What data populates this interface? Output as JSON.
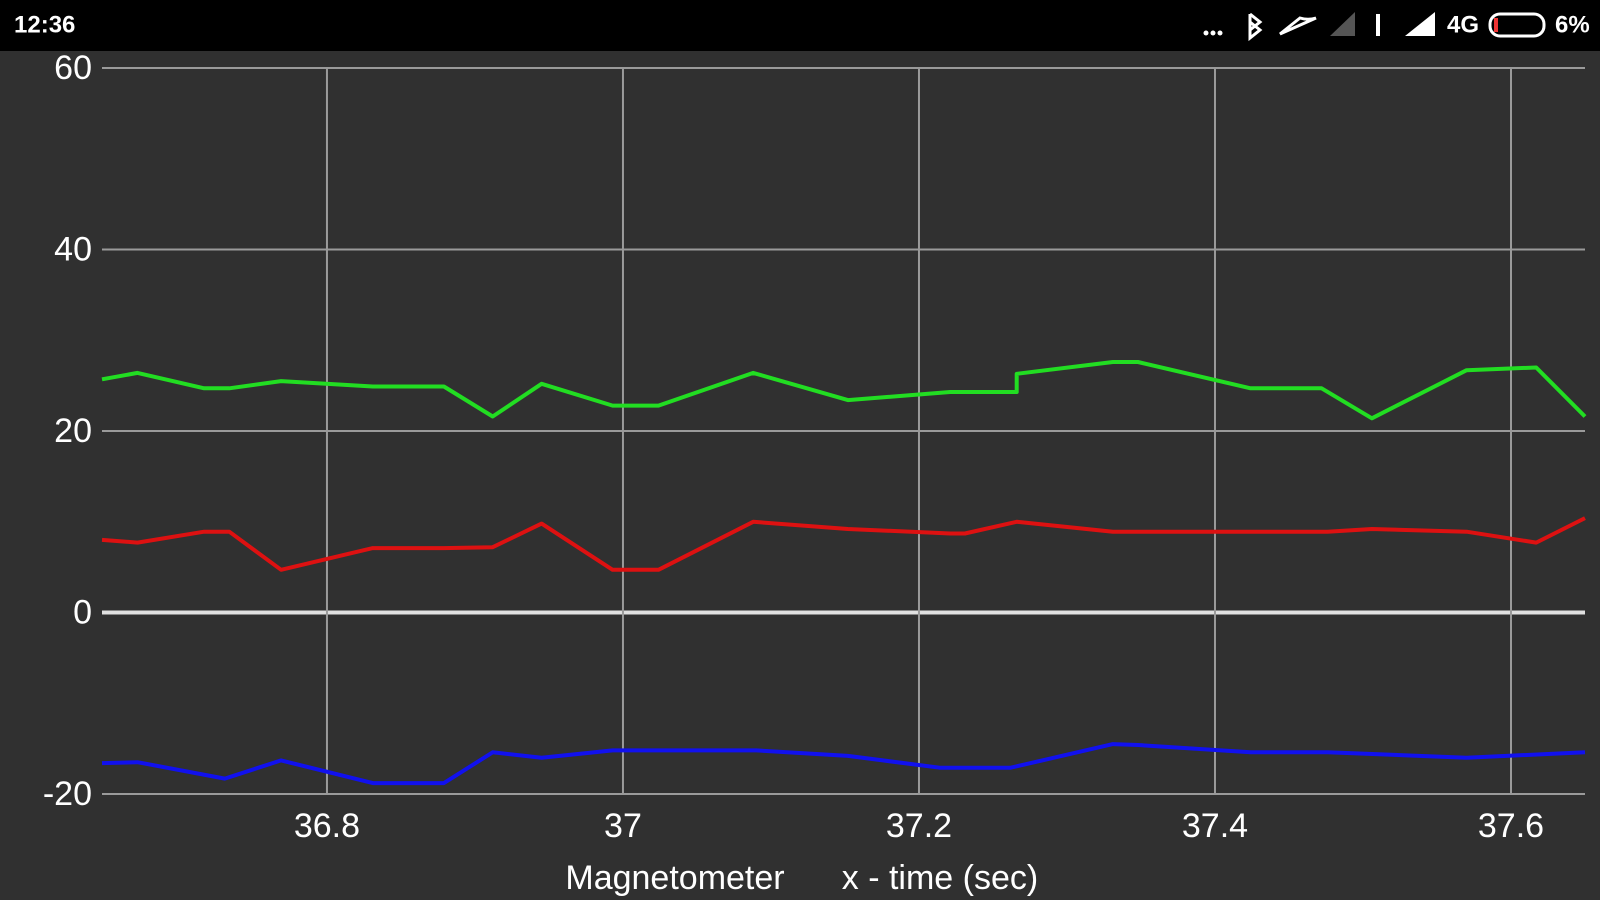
{
  "status_bar": {
    "time": "12:36",
    "network": "4G",
    "battery": "6%"
  },
  "chart_data": {
    "type": "line",
    "title": "Magnetometer",
    "x_label": "x - time (sec)",
    "xlim": [
      36.648,
      37.65
    ],
    "xticks": [
      36.8,
      37,
      37.2,
      37.4,
      37.6
    ],
    "ylim": [
      -20,
      60
    ],
    "yticks": [
      -20,
      0,
      20,
      40,
      60
    ],
    "grid": true,
    "series": [
      {
        "color": "#22dd22",
        "x": [
          36.648,
          36.672,
          36.717,
          36.734,
          36.769,
          36.831,
          36.879,
          36.912,
          36.945,
          36.993,
          37.024,
          37.088,
          37.152,
          37.221,
          37.266,
          37.266,
          37.331,
          37.348,
          37.424,
          37.472,
          37.506,
          37.57,
          37.617,
          37.65
        ],
        "values": [
          25.7,
          26.4,
          24.7,
          24.7,
          25.5,
          24.9,
          24.9,
          21.6,
          25.2,
          22.8,
          22.8,
          26.4,
          23.4,
          24.3,
          24.3,
          26.3,
          27.6,
          27.6,
          24.7,
          24.7,
          21.4,
          26.7,
          27.0,
          21.6
        ]
      },
      {
        "color": "#dd1111",
        "x": [
          36.648,
          36.672,
          36.717,
          36.734,
          36.769,
          36.831,
          36.879,
          36.912,
          36.945,
          36.993,
          37.024,
          37.088,
          37.152,
          37.221,
          37.231,
          37.266,
          37.331,
          37.476,
          37.506,
          37.57,
          37.617,
          37.65
        ],
        "values": [
          8.0,
          7.7,
          8.9,
          8.9,
          4.7,
          7.1,
          7.1,
          7.2,
          9.8,
          4.7,
          4.7,
          10.0,
          9.2,
          8.7,
          8.7,
          10.0,
          8.9,
          8.9,
          9.2,
          8.9,
          7.7,
          10.4
        ]
      },
      {
        "color": "#1111ee",
        "x": [
          36.648,
          36.672,
          36.731,
          36.769,
          36.831,
          36.879,
          36.912,
          36.945,
          36.993,
          37.09,
          37.152,
          37.214,
          37.262,
          37.331,
          37.348,
          37.424,
          37.476,
          37.57,
          37.65
        ],
        "values": [
          -16.6,
          -16.5,
          -18.3,
          -16.3,
          -18.8,
          -18.8,
          -15.4,
          -16.0,
          -15.2,
          -15.2,
          -15.8,
          -17.1,
          -17.1,
          -14.5,
          -14.6,
          -15.4,
          -15.4,
          -16.0,
          -15.4
        ]
      }
    ]
  }
}
